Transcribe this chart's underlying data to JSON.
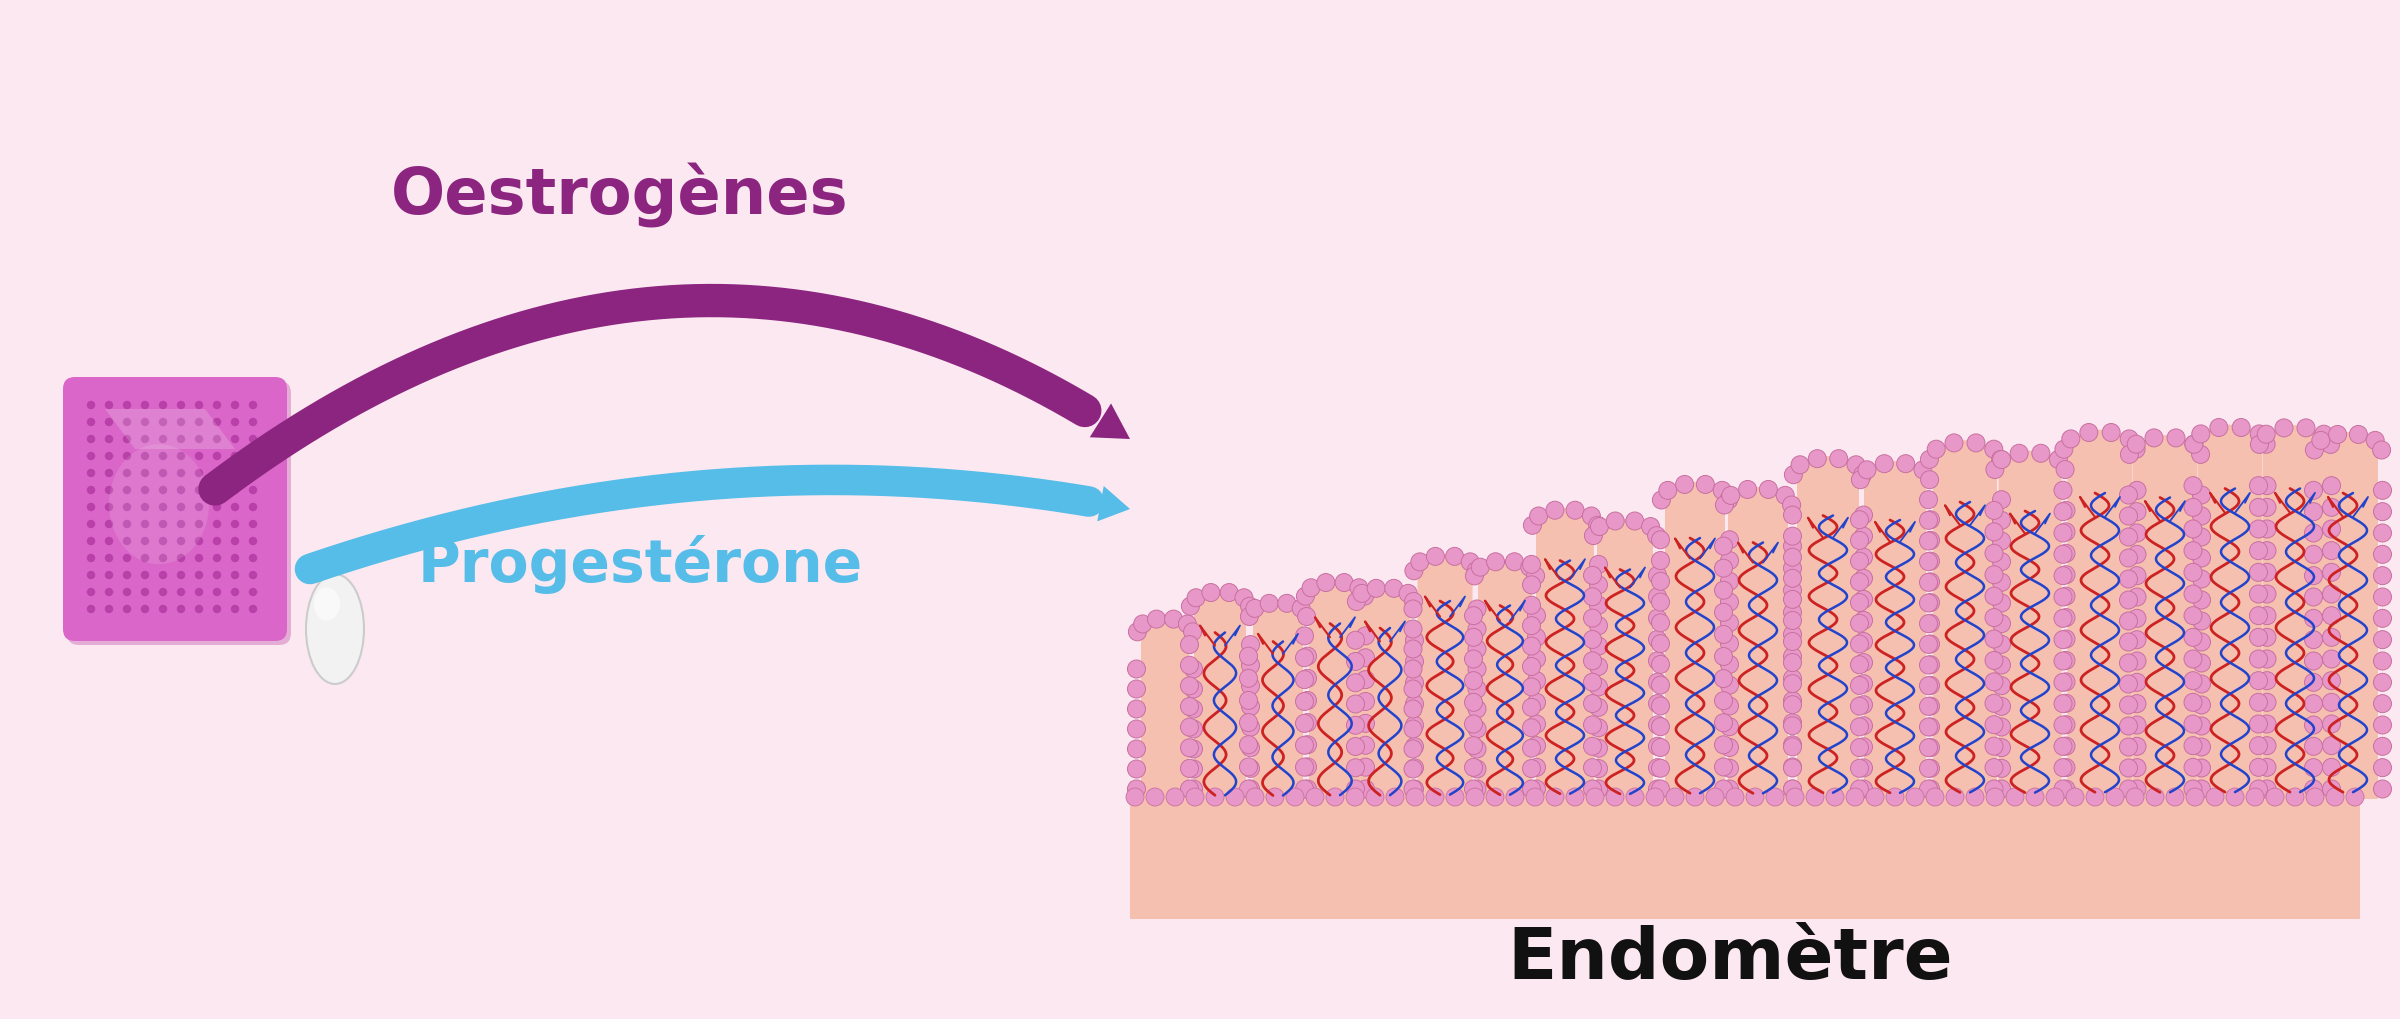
{
  "bg_color": "#fce8f0",
  "arrow_purple_color": "#8b2580",
  "arrow_blue_color": "#55bde8",
  "label_oestrogenes": "Oestrogènes",
  "label_progesterone": "Progestérone",
  "label_endometree": "Endomètre",
  "label_oestrogenes_color": "#8b2580",
  "label_progesterone_color": "#55bde8",
  "label_endometree_color": "#111111",
  "patch_color": "#d966c8",
  "patch_dot_color": "#b840a8",
  "pill_color": "#f2f2f2",
  "endometrium_base_color": "#f5c0b0",
  "cell_color": "#e898c8",
  "cell_edge_color": "#c870a0",
  "vessel_red": "#cc2222",
  "vessel_blue": "#2244cc"
}
